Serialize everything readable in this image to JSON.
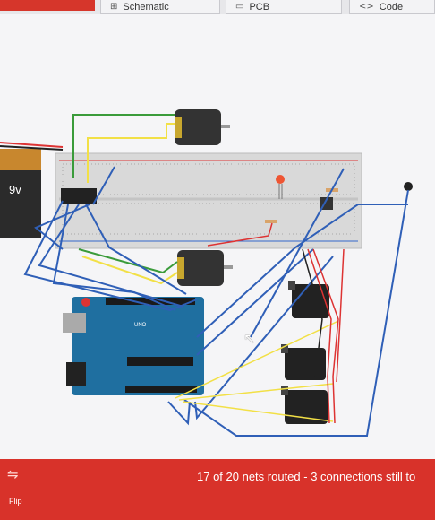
{
  "toolbar": {
    "tabs": [
      {
        "label": "Schematic",
        "icon": "schematic-icon"
      },
      {
        "label": "PCB",
        "icon": "pcb-icon"
      },
      {
        "label": "Code",
        "icon": "code-icon"
      }
    ]
  },
  "canvas": {
    "battery_label": "9v",
    "arduino_label": "UNO"
  },
  "footer": {
    "flip_label": "Flip",
    "status": "17 of 20 nets routed - 3 connections still to"
  },
  "colors": {
    "accent_red": "#d8322a",
    "wire_blue": "#2f5fb7",
    "wire_yellow": "#f2e046",
    "board_teal": "#1f6fa0"
  }
}
